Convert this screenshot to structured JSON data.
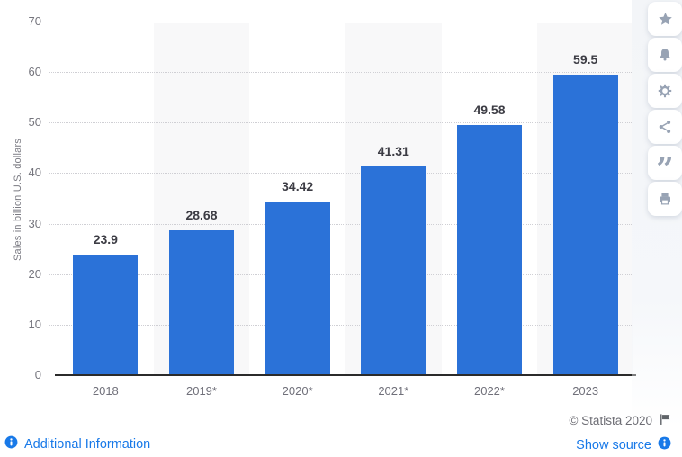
{
  "chart_data": {
    "type": "bar",
    "categories": [
      "2018",
      "2019*",
      "2020*",
      "2021*",
      "2022*",
      "2023"
    ],
    "values": [
      23.9,
      28.68,
      34.42,
      41.31,
      49.58,
      59.5
    ],
    "value_labels": [
      "23.9",
      "28.68",
      "34.42",
      "41.31",
      "49.58",
      "59.5"
    ],
    "title": "",
    "xlabel": "",
    "ylabel": "Sales in billion U.S. dollars",
    "ylim": [
      0,
      70
    ],
    "yticks": [
      0,
      10,
      20,
      30,
      40,
      50,
      60,
      70
    ],
    "grid": "horizontal-dotted",
    "legend": "none",
    "bar_color": "#2b72d8",
    "striped_category_indices": [
      1,
      3,
      5
    ]
  },
  "sidebar": {
    "buttons": [
      {
        "name": "favorite",
        "icon": "star-icon"
      },
      {
        "name": "alert",
        "icon": "bell-icon"
      },
      {
        "name": "settings",
        "icon": "gear-icon"
      },
      {
        "name": "share",
        "icon": "share-icon"
      },
      {
        "name": "cite",
        "icon": "quote-icon"
      },
      {
        "name": "print",
        "icon": "print-icon"
      }
    ]
  },
  "footer": {
    "additional_information_label": "Additional Information",
    "copyright_label": "© Statista 2020",
    "show_source_label": "Show source"
  },
  "colors": {
    "bar": "#2b72d8",
    "link": "#1879e8",
    "axis_text": "#75757d",
    "value_label": "#3c3c44",
    "gridline": "#cfcfd4",
    "stripe": "#f8f8f9",
    "icon": "#98a3b4",
    "copyright_text": "#6d6d74"
  }
}
